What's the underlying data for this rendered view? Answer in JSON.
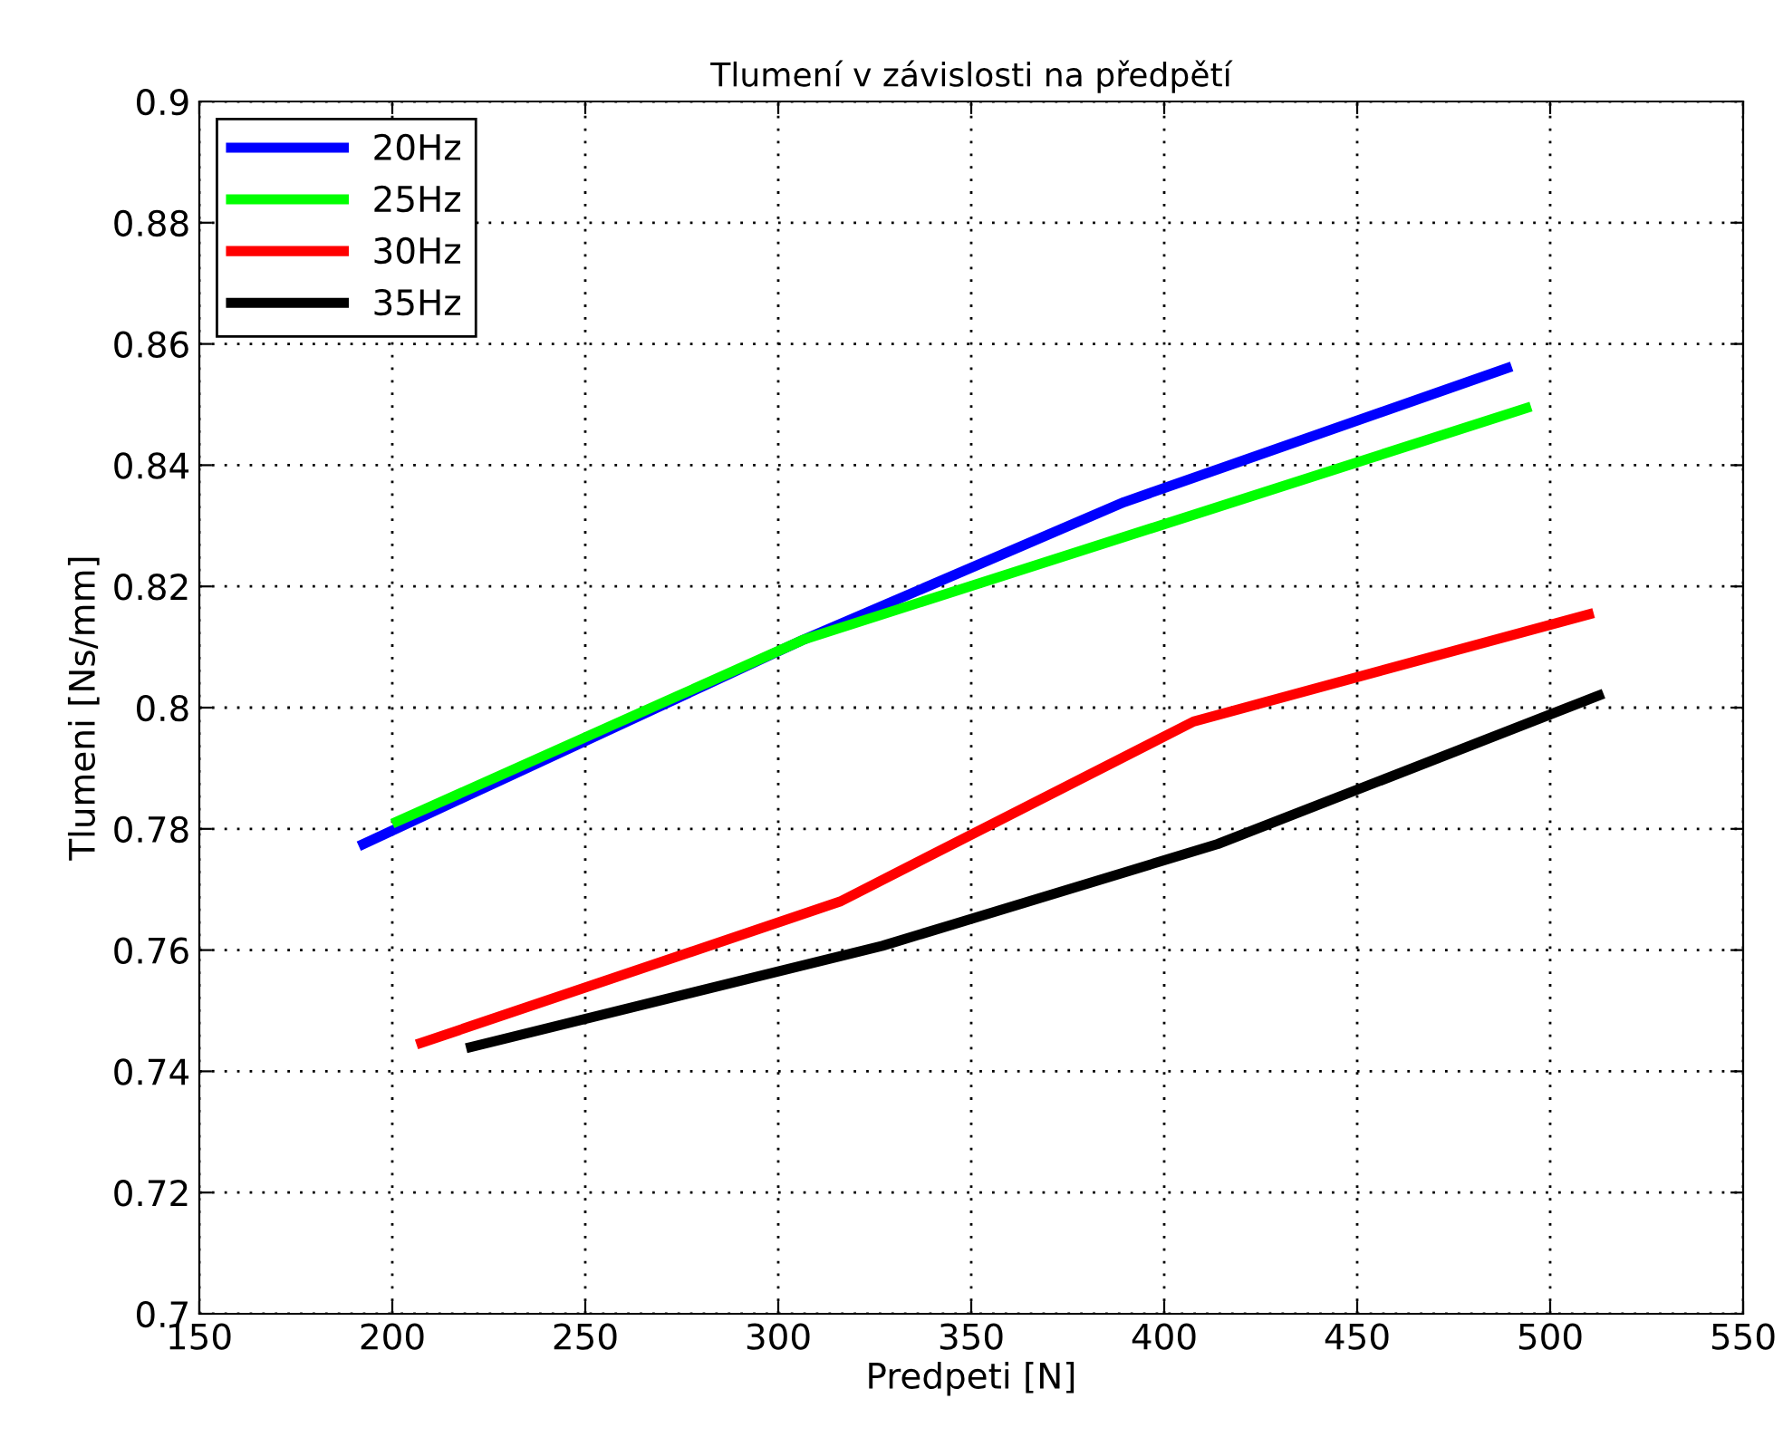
{
  "chart_data": {
    "type": "line",
    "title": "Tlumení v závislosti na předpětí",
    "xlabel": "Predpeti [N]",
    "ylabel": "Tlumeni [Ns/mm]",
    "xlim": [
      150,
      550
    ],
    "xticks": [
      150,
      200,
      250,
      300,
      350,
      400,
      450,
      500,
      550
    ],
    "ylim": [
      0.7,
      0.9
    ],
    "yticks": [
      0.7,
      0.72,
      0.74,
      0.76,
      0.78,
      0.8,
      0.82,
      0.84,
      0.86,
      0.88,
      0.9
    ],
    "grid": true,
    "legend": "top left",
    "line_style": "solid",
    "marker": "none",
    "series": [
      {
        "name": "20Hz",
        "color": "#0000ff",
        "x": [
          192.5,
          306.5,
          389.6,
          488.8
        ],
        "values": [
          0.7775,
          0.8112,
          0.8339,
          0.856
        ]
      },
      {
        "name": "25Hz",
        "color": "#00ff00",
        "x": [
          201.2,
          306.5,
          493.8
        ],
        "values": [
          0.7812,
          0.8112,
          0.8494
        ]
      },
      {
        "name": "30Hz",
        "color": "#ff0000",
        "x": [
          207.5,
          316,
          407.6,
          510
        ],
        "values": [
          0.7447,
          0.768,
          0.7977,
          0.8154
        ]
      },
      {
        "name": "35Hz",
        "color": "#000000",
        "x": [
          220.4,
          327,
          413.9,
          512.6
        ],
        "values": [
          0.744,
          0.7607,
          0.7775,
          0.802
        ]
      }
    ]
  }
}
